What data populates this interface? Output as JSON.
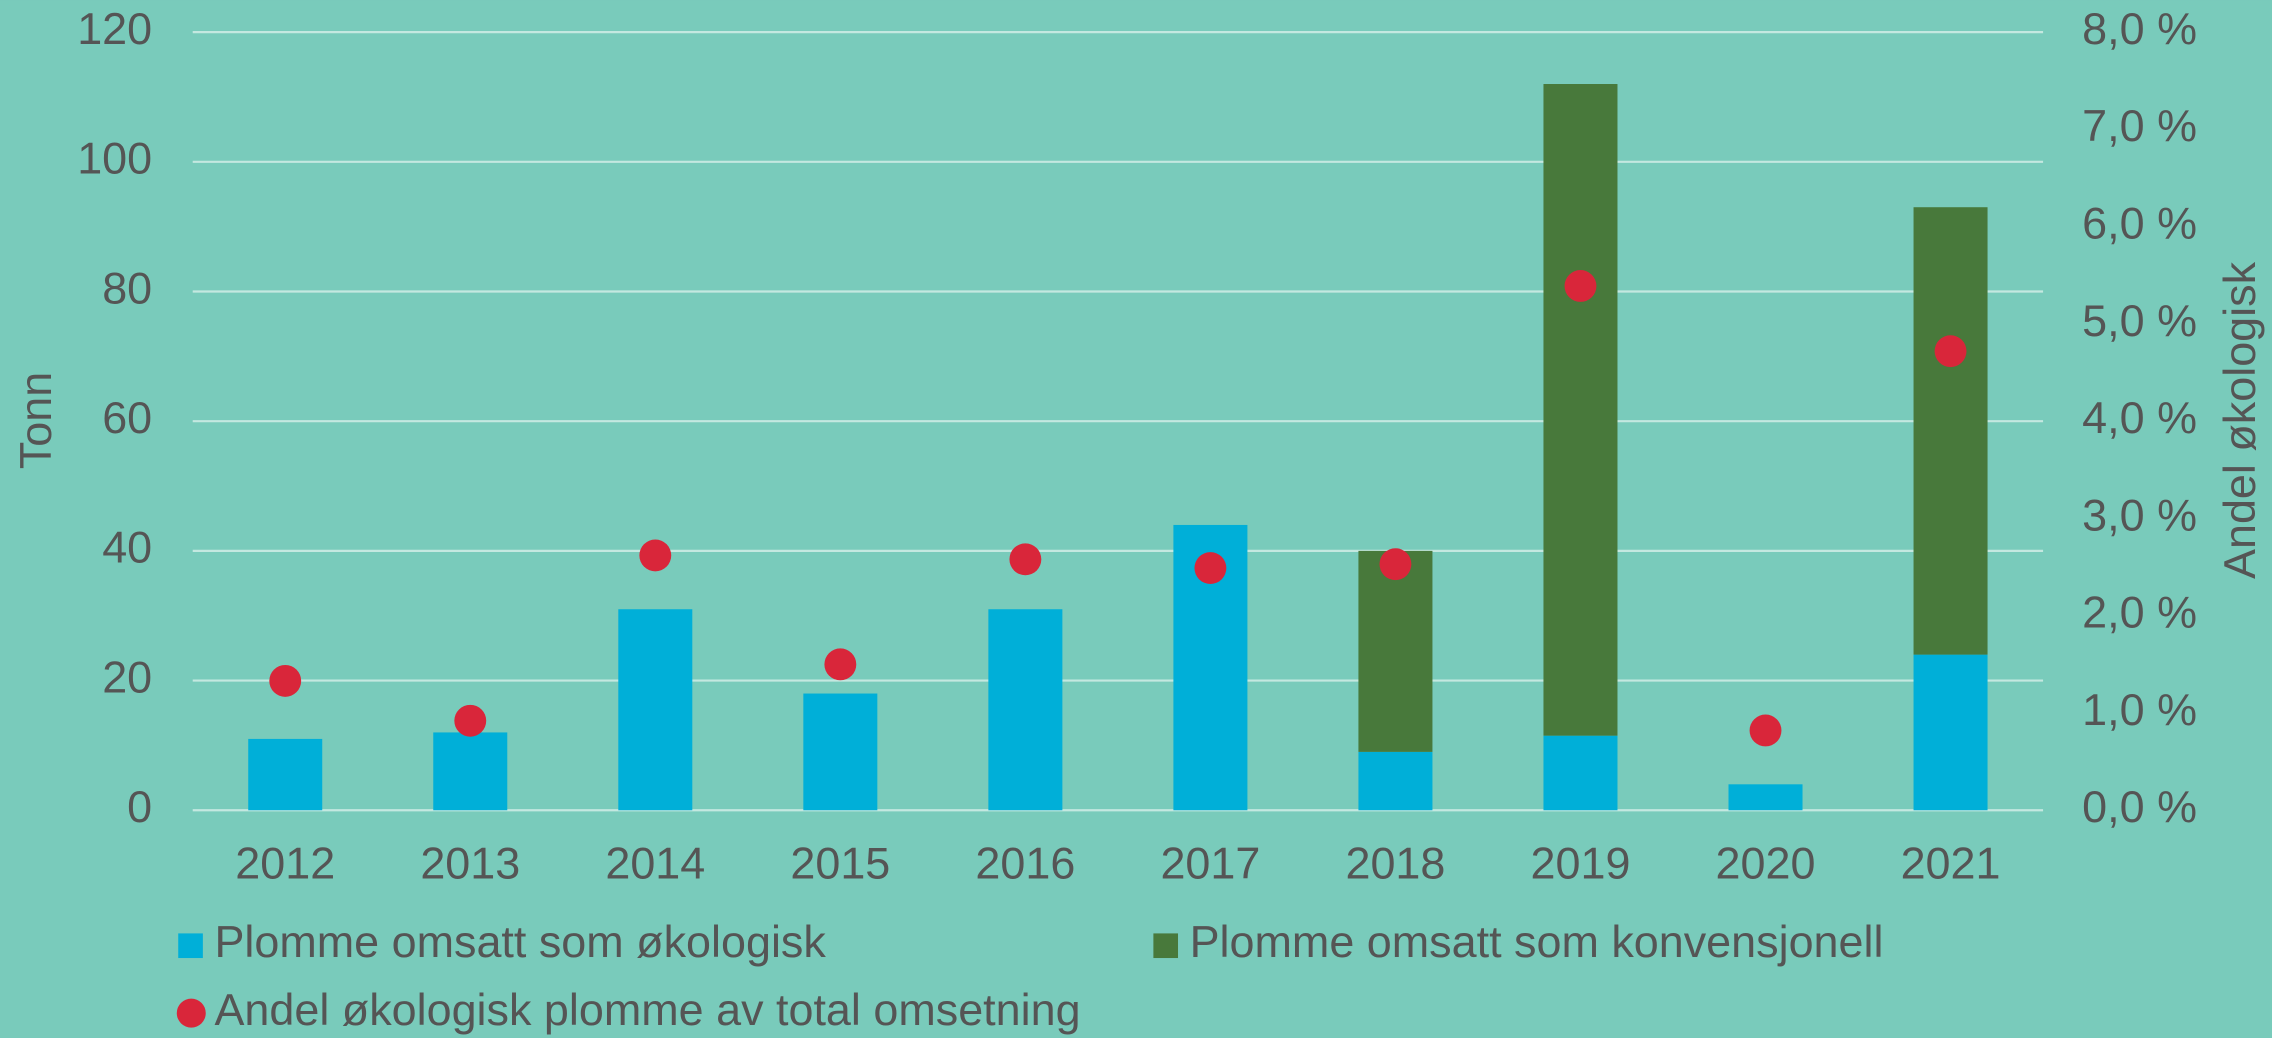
{
  "chart_data": {
    "type": "bar",
    "categories": [
      "2012",
      "2013",
      "2014",
      "2015",
      "2016",
      "2017",
      "2018",
      "2019",
      "2020",
      "2021"
    ],
    "series": [
      {
        "name": "Plomme omsatt som økologisk",
        "color": "#00afd8",
        "values": [
          11,
          12,
          31,
          18,
          31,
          44,
          9,
          11.5,
          4,
          24
        ]
      },
      {
        "name": "Plomme omsatt som konvensjonell",
        "color": "#48793b",
        "values": [
          null,
          null,
          null,
          null,
          null,
          null,
          31,
          100.5,
          null,
          69
        ]
      },
      {
        "name": "Andel økologisk plomme av total omsetning",
        "color": "#d9263a",
        "type": "scatter",
        "axis": "y2",
        "values": [
          1.33,
          0.92,
          2.62,
          1.5,
          2.58,
          2.49,
          2.53,
          5.39,
          0.82,
          4.72
        ]
      }
    ],
    "ylabel": "Tonn",
    "y2label": "Andel økologisk",
    "ylim": [
      0,
      120
    ],
    "yticks": [
      0,
      20,
      40,
      60,
      80,
      100,
      120
    ],
    "y2lim": [
      0,
      8
    ],
    "y2ticks": [
      {
        "value": 0,
        "label": "0,0 %"
      },
      {
        "value": 1,
        "label": "1,0 %"
      },
      {
        "value": 2,
        "label": "2,0 %"
      },
      {
        "value": 3,
        "label": "3,0 %"
      },
      {
        "value": 4,
        "label": "4,0 %"
      },
      {
        "value": 5,
        "label": "5,0 %"
      },
      {
        "value": 6,
        "label": "6,0 %"
      },
      {
        "value": 7,
        "label": "7,0 %"
      },
      {
        "value": 8,
        "label": "8,0 %"
      }
    ],
    "grid": true,
    "stacked": true,
    "legend": "bottom"
  }
}
